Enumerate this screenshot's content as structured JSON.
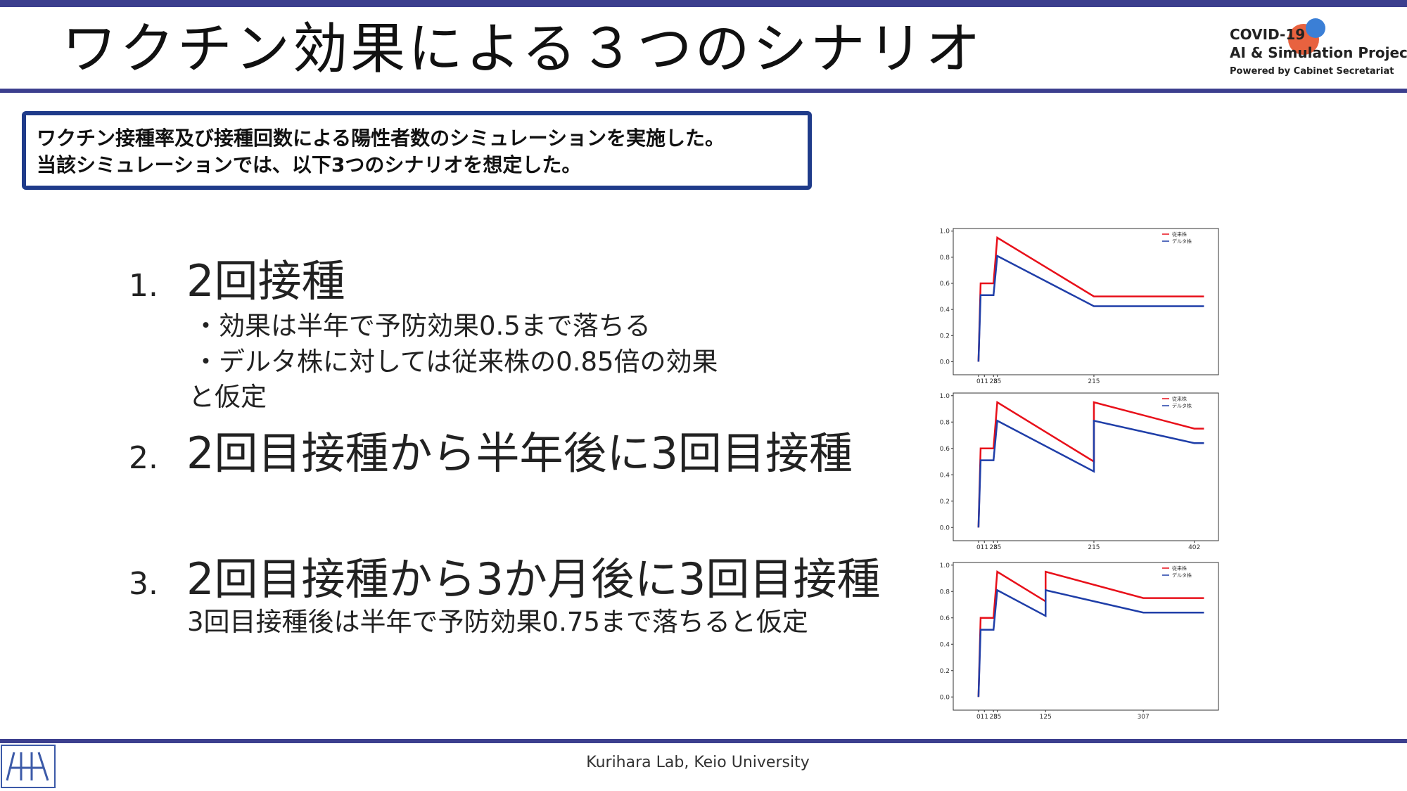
{
  "header": {
    "title": "ワクチン効果による３つのシナリオ"
  },
  "logo": [
    "COVID-19",
    "AI & Simulation Project",
    "Powered by Cabinet Secretariat"
  ],
  "summary": [
    "ワクチン接種率及び接種回数による陽性者数のシミュレーションを実施した。",
    "当該シミュレーションでは、以下3つのシナリオを想定した。"
  ],
  "items": [
    {
      "number": "1.",
      "title": "2回接種",
      "notes": [
        "・効果は半年で予防効果0.5まで落ちる",
        "・デルタ株に対しては従来株の0.85倍の効果",
        "と仮定"
      ]
    },
    {
      "number": "2.",
      "title": "2回目接種から半年後に3回目接種"
    },
    {
      "number": "3.",
      "title": "2回目接種から3か月後に3回目接種",
      "notes": [
        "3回目接種後は半年で予防効果0.75まで落ちると仮定"
      ]
    }
  ],
  "footer": "Kurihara Lab, Keio University",
  "chart_data": [
    {
      "type": "line",
      "x": [
        0,
        4,
        28,
        35,
        215,
        420
      ],
      "series": [
        {
          "name": "従来株",
          "color": "#e8101a",
          "values": [
            0,
            0.6,
            0.6,
            0.95,
            0.5,
            0.5
          ]
        },
        {
          "name": "デルタ株",
          "color": "#1f3ea8",
          "values": [
            0,
            0.51,
            0.51,
            0.81,
            0.425,
            0.425
          ]
        }
      ],
      "xlim": [
        -47,
        447
      ],
      "ylim": [
        -0.1,
        1.02
      ],
      "xticks": [
        0,
        11,
        28,
        35,
        215
      ],
      "yticks": [
        {
          "value": 0,
          "label": "0.0"
        },
        {
          "value": 0.2,
          "label": "0.2"
        },
        {
          "value": 0.4,
          "label": "0.4"
        },
        {
          "value": 0.6,
          "label": "0.6"
        },
        {
          "value": 0.8,
          "label": "0.8"
        },
        {
          "value": 1,
          "label": "1.0"
        }
      ],
      "legend": "upper right"
    },
    {
      "type": "line",
      "x": [
        0,
        4,
        28,
        35,
        215,
        215,
        402,
        420
      ],
      "series": [
        {
          "name": "従来株",
          "color": "#e8101a",
          "values": [
            0,
            0.6,
            0.6,
            0.95,
            0.5,
            0.95,
            0.75,
            0.75
          ]
        },
        {
          "name": "デルタ株",
          "color": "#1f3ea8",
          "values": [
            0,
            0.51,
            0.51,
            0.81,
            0.425,
            0.81,
            0.64,
            0.64
          ]
        }
      ],
      "xlim": [
        -47,
        447
      ],
      "ylim": [
        -0.1,
        1.02
      ],
      "xticks": [
        0,
        11,
        28,
        35,
        215,
        402
      ],
      "yticks": [
        {
          "value": 0,
          "label": "0.0"
        },
        {
          "value": 0.2,
          "label": "0.2"
        },
        {
          "value": 0.4,
          "label": "0.4"
        },
        {
          "value": 0.6,
          "label": "0.6"
        },
        {
          "value": 0.8,
          "label": "0.8"
        },
        {
          "value": 1,
          "label": "1.0"
        }
      ],
      "legend": "upper right"
    },
    {
      "type": "line",
      "x": [
        0,
        4,
        28,
        35,
        125,
        125,
        307,
        420
      ],
      "series": [
        {
          "name": "従来株",
          "color": "#e8101a",
          "values": [
            0,
            0.6,
            0.6,
            0.95,
            0.725,
            0.95,
            0.75,
            0.75
          ]
        },
        {
          "name": "デルタ株",
          "color": "#1f3ea8",
          "values": [
            0,
            0.51,
            0.51,
            0.81,
            0.615,
            0.81,
            0.64,
            0.64
          ]
        }
      ],
      "xlim": [
        -47,
        447
      ],
      "ylim": [
        -0.1,
        1.02
      ],
      "xticks": [
        0,
        11,
        28,
        35,
        125,
        307
      ],
      "yticks": [
        {
          "value": 0,
          "label": "0.0"
        },
        {
          "value": 0.2,
          "label": "0.2"
        },
        {
          "value": 0.4,
          "label": "0.4"
        },
        {
          "value": 0.6,
          "label": "0.6"
        },
        {
          "value": 0.8,
          "label": "0.8"
        },
        {
          "value": 1,
          "label": "1.0"
        }
      ],
      "legend": "upper right"
    }
  ]
}
